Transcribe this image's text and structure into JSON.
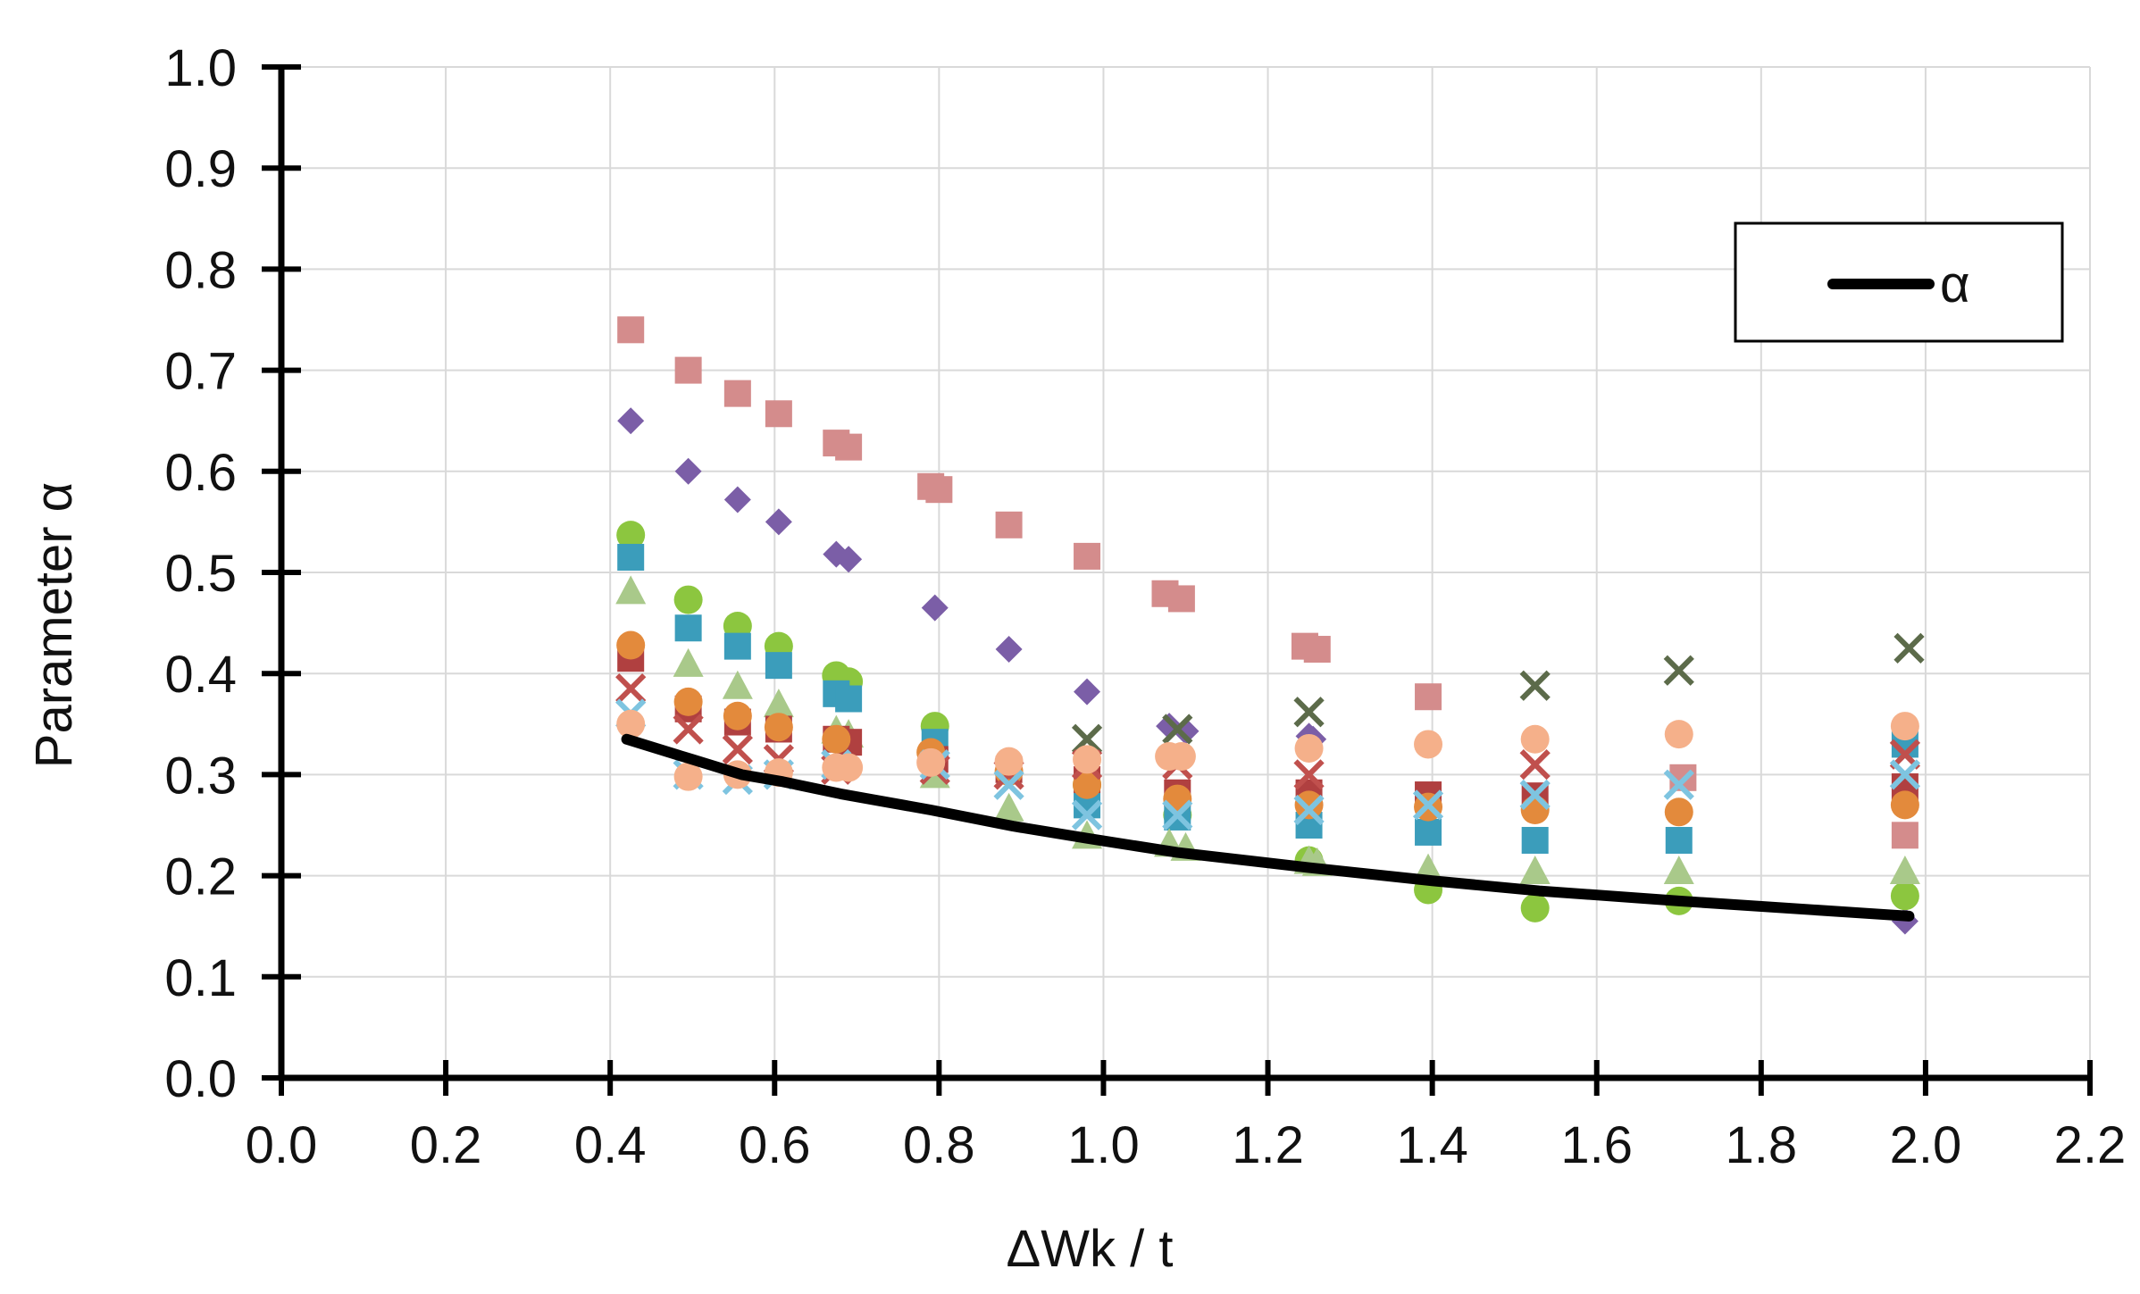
{
  "chart_data": {
    "type": "scatter",
    "title": "",
    "xlabel": "ΔWk / t",
    "ylabel": "Parameter α",
    "xlim": [
      0.0,
      2.2
    ],
    "ylim": [
      0.0,
      1.0
    ],
    "x_ticks": [
      "0.0",
      "0.2",
      "0.4",
      "0.6",
      "0.8",
      "1.0",
      "1.2",
      "1.4",
      "1.6",
      "1.8",
      "2.0",
      "2.2"
    ],
    "y_ticks": [
      "0.0",
      "0.1",
      "0.2",
      "0.3",
      "0.4",
      "0.5",
      "0.6",
      "0.7",
      "0.8",
      "0.9",
      "1.0"
    ],
    "grid": true,
    "legend": {
      "position": "top-right",
      "entries": [
        "α"
      ]
    },
    "fit_line": {
      "name": "α",
      "color": "#000000",
      "x": [
        0.42,
        0.5,
        0.56,
        0.61,
        0.68,
        0.79,
        0.89,
        0.98,
        1.09,
        1.25,
        1.4,
        1.53,
        1.7,
        1.98
      ],
      "y": [
        0.335,
        0.315,
        0.3,
        0.293,
        0.281,
        0.265,
        0.249,
        0.237,
        0.223,
        0.208,
        0.195,
        0.185,
        0.175,
        0.16
      ]
    },
    "series": [
      {
        "name": "series-pink-square",
        "marker": "square",
        "color": "#d48c8c",
        "x": [
          0.425,
          0.495,
          0.555,
          0.605,
          0.675,
          0.69,
          0.79,
          0.8,
          0.885,
          0.98,
          1.075,
          1.095,
          1.245,
          1.26,
          1.395,
          1.705,
          1.975
        ],
        "y": [
          0.74,
          0.7,
          0.677,
          0.657,
          0.628,
          0.624,
          0.585,
          0.582,
          0.547,
          0.516,
          0.479,
          0.474,
          0.427,
          0.424,
          0.377,
          0.297,
          0.24
        ]
      },
      {
        "name": "series-purple-diamond",
        "marker": "diamond",
        "color": "#7b5ea7",
        "x": [
          0.425,
          0.495,
          0.555,
          0.605,
          0.675,
          0.69,
          0.795,
          0.885,
          0.98,
          1.08,
          1.1,
          1.25,
          1.255,
          1.975
        ],
        "y": [
          0.65,
          0.6,
          0.572,
          0.55,
          0.518,
          0.513,
          0.465,
          0.424,
          0.382,
          0.348,
          0.343,
          0.338,
          0.335,
          0.155
        ]
      },
      {
        "name": "series-green-circle",
        "marker": "circle",
        "color": "#8cc63f",
        "x": [
          0.425,
          0.495,
          0.555,
          0.605,
          0.675,
          0.69,
          0.795,
          0.98,
          1.09,
          1.25,
          1.395,
          1.525,
          1.7,
          1.975
        ],
        "y": [
          0.537,
          0.473,
          0.447,
          0.427,
          0.398,
          0.392,
          0.348,
          0.29,
          0.26,
          0.215,
          0.186,
          0.168,
          0.175,
          0.18
        ]
      },
      {
        "name": "series-teal-square",
        "marker": "square",
        "color": "#3b9dbb",
        "x": [
          0.425,
          0.495,
          0.555,
          0.605,
          0.675,
          0.69,
          0.795,
          0.98,
          1.09,
          1.25,
          1.395,
          1.525,
          1.7,
          1.975
        ],
        "y": [
          0.515,
          0.445,
          0.427,
          0.408,
          0.38,
          0.375,
          0.332,
          0.27,
          0.258,
          0.25,
          0.243,
          0.235,
          0.235,
          0.33
        ]
      },
      {
        "name": "series-light-green-triangle",
        "marker": "triangle",
        "color": "#a9c98a",
        "x": [
          0.425,
          0.495,
          0.555,
          0.605,
          0.675,
          0.69,
          0.795,
          0.885,
          0.98,
          1.08,
          1.1,
          1.25,
          1.26,
          1.395,
          1.525,
          1.7,
          1.975
        ],
        "y": [
          0.482,
          0.41,
          0.388,
          0.37,
          0.344,
          0.34,
          0.3,
          0.267,
          0.24,
          0.232,
          0.228,
          0.215,
          0.213,
          0.207,
          0.205,
          0.205,
          0.205
        ]
      },
      {
        "name": "series-dark-red-square",
        "marker": "square",
        "color": "#b04040",
        "x": [
          0.425,
          0.495,
          0.555,
          0.605,
          0.675,
          0.69,
          0.795,
          0.885,
          0.98,
          1.09,
          1.25,
          1.395,
          1.525,
          1.975
        ],
        "y": [
          0.415,
          0.365,
          0.352,
          0.345,
          0.335,
          0.332,
          0.315,
          0.305,
          0.295,
          0.282,
          0.282,
          0.28,
          0.279,
          0.288
        ]
      },
      {
        "name": "series-orange-circle",
        "marker": "circle",
        "color": "#e38a3c",
        "x": [
          0.425,
          0.495,
          0.555,
          0.605,
          0.675,
          0.79,
          0.885,
          0.98,
          1.09,
          1.25,
          1.395,
          1.525,
          1.7,
          1.975
        ],
        "y": [
          0.428,
          0.372,
          0.358,
          0.347,
          0.335,
          0.322,
          0.303,
          0.29,
          0.276,
          0.27,
          0.268,
          0.265,
          0.263,
          0.27
        ]
      },
      {
        "name": "series-gray-x",
        "marker": "x",
        "color": "#5c6b4a",
        "x": [
          0.98,
          1.09,
          1.25,
          1.525,
          1.7,
          1.98
        ],
        "y": [
          0.335,
          0.345,
          0.362,
          0.388,
          0.403,
          0.425
        ]
      },
      {
        "name": "series-red-x",
        "marker": "x",
        "color": "#c0504d",
        "x": [
          0.425,
          0.495,
          0.555,
          0.605,
          0.675,
          0.795,
          0.885,
          0.98,
          1.09,
          1.25,
          1.525,
          1.975
        ],
        "y": [
          0.385,
          0.345,
          0.325,
          0.315,
          0.305,
          0.305,
          0.3,
          0.31,
          0.31,
          0.3,
          0.31,
          0.32
        ]
      },
      {
        "name": "series-skyblue-x",
        "marker": "x",
        "color": "#7ec4e0",
        "x": [
          0.425,
          0.495,
          0.555,
          0.605,
          0.675,
          0.795,
          0.885,
          0.98,
          1.09,
          1.25,
          1.395,
          1.525,
          1.7,
          1.975
        ],
        "y": [
          0.36,
          0.3,
          0.295,
          0.3,
          0.31,
          0.31,
          0.29,
          0.26,
          0.26,
          0.265,
          0.27,
          0.28,
          0.29,
          0.3
        ]
      },
      {
        "name": "series-peach-circle",
        "marker": "circle",
        "color": "#f5b08a",
        "x": [
          0.425,
          0.495,
          0.555,
          0.605,
          0.675,
          0.69,
          0.79,
          0.885,
          0.98,
          1.08,
          1.095,
          1.25,
          1.395,
          1.525,
          1.7,
          1.975
        ],
        "y": [
          0.35,
          0.298,
          0.3,
          0.302,
          0.307,
          0.307,
          0.312,
          0.313,
          0.315,
          0.318,
          0.318,
          0.326,
          0.33,
          0.335,
          0.34,
          0.348
        ]
      }
    ]
  }
}
